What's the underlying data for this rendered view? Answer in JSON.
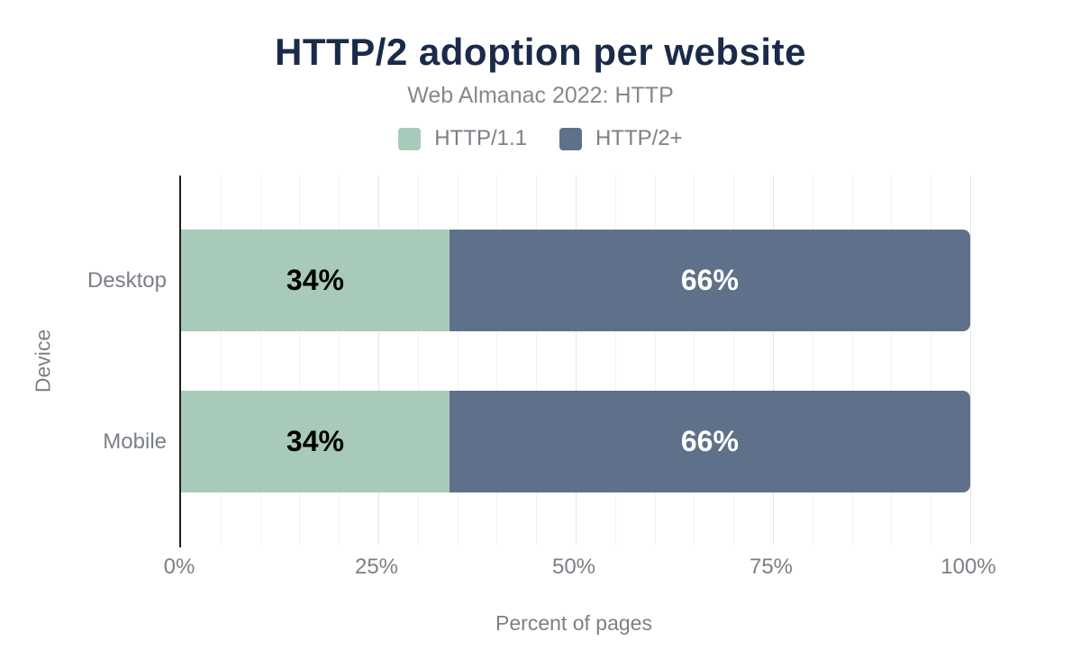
{
  "chart_data": {
    "type": "bar",
    "orientation": "horizontal-stacked",
    "title": "HTTP/2 adoption per website",
    "subtitle": "Web Almanac 2022: HTTP",
    "categories": [
      "Desktop",
      "Mobile"
    ],
    "series": [
      {
        "name": "HTTP/1.1",
        "color": "#a8cbb9",
        "values": [
          34,
          34
        ]
      },
      {
        "name": "HTTP/2+",
        "color": "#5f718a",
        "values": [
          66,
          66
        ]
      }
    ],
    "data_labels": {
      "desktop": [
        "34%",
        "66%"
      ],
      "mobile": [
        "34%",
        "66%"
      ]
    },
    "xlabel": "Percent of pages",
    "ylabel": "Device",
    "xticks": [
      "0%",
      "25%",
      "50%",
      "75%",
      "100%"
    ],
    "xlim": [
      0,
      100
    ],
    "grid": "vertical minor gridlines every 5%, major every 25%",
    "legend_position": "top-center"
  },
  "colors": {
    "title_navy": "#1a2b49",
    "muted_text": "#7b8086",
    "subtitle_gray": "#84888e",
    "axis_line": "#1f1f1f",
    "gridline_minor": "#f2f2f2",
    "gridline_major": "#e3e3e3",
    "background": "#ffffff"
  }
}
